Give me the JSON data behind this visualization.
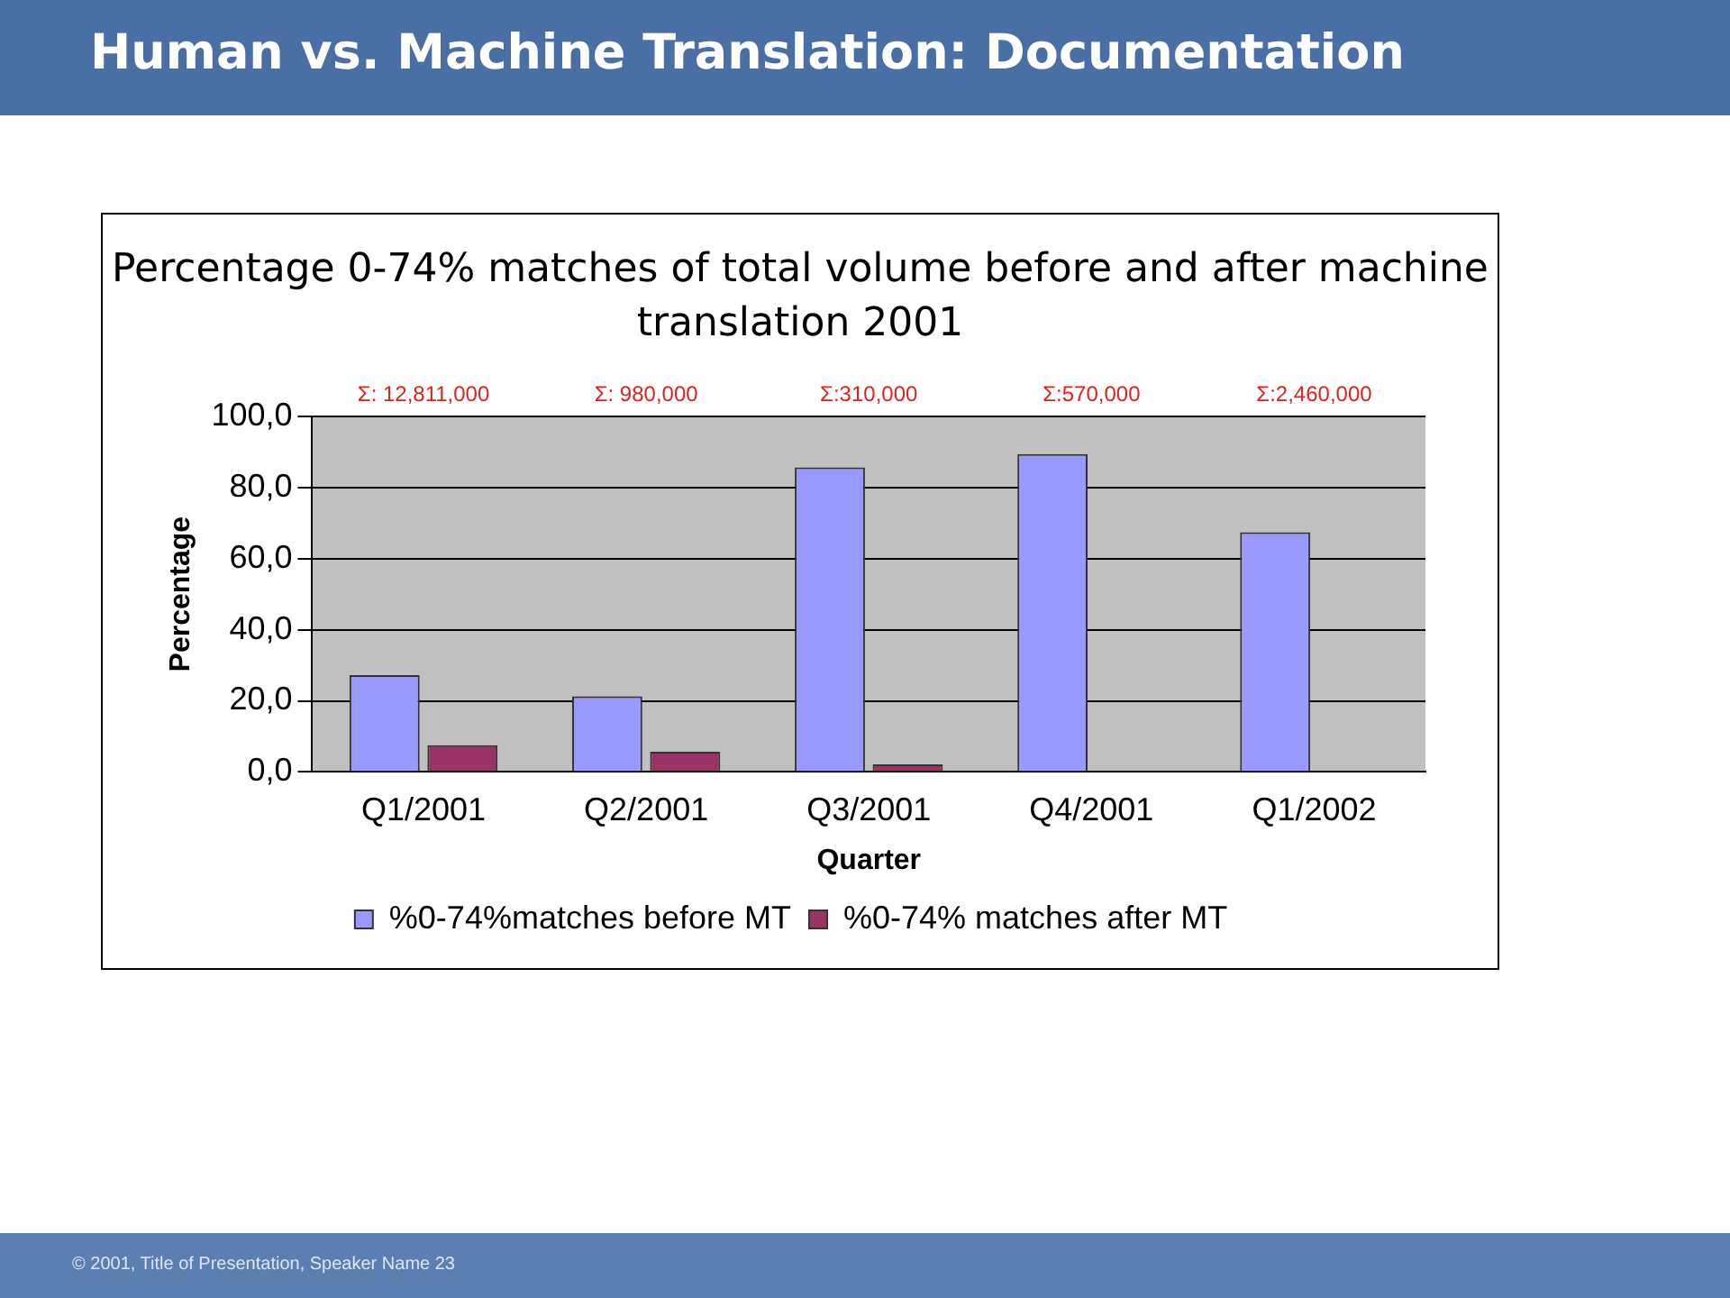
{
  "chart_data": {
    "type": "bar",
    "title": "Human vs. Machine Translation: Documentation",
    "subtitle": "Percentage 0-74% matches of total volume before and after machine translation 2001",
    "xlabel": "Quarter",
    "ylabel": "Percentage",
    "categories": [
      "Q1/2001",
      "Q2/2001",
      "Q3/2001",
      "Q4/2001",
      "Q1/2002"
    ],
    "series": [
      {
        "name": "%0-74%matches before MT",
        "color": "#9999ff",
        "values": [
          27.2,
          21.3,
          85.7,
          89.4,
          67.4
        ]
      },
      {
        "name": "%0-74% matches after MT",
        "color": "#993366",
        "values": [
          7.5,
          5.7,
          2.1,
          null,
          null
        ]
      }
    ],
    "ylim": [
      0,
      100
    ],
    "yticks": [
      {
        "value": 0,
        "label": "0,0"
      },
      {
        "value": 20,
        "label": "20,0"
      },
      {
        "value": 40,
        "label": "40,0"
      },
      {
        "value": 60,
        "label": "60,0"
      },
      {
        "value": 80,
        "label": "80,0"
      },
      {
        "value": 100,
        "label": "100,0"
      }
    ],
    "grid": "y",
    "legend": "bottom",
    "annotations": [
      "Σ: 12,811,000",
      "Σ: 980,000",
      "Σ:310,000",
      "Σ:570,000",
      "Σ:2,460,000",
      "© 2001, Title of Presentation, Speaker Name 23"
    ]
  }
}
